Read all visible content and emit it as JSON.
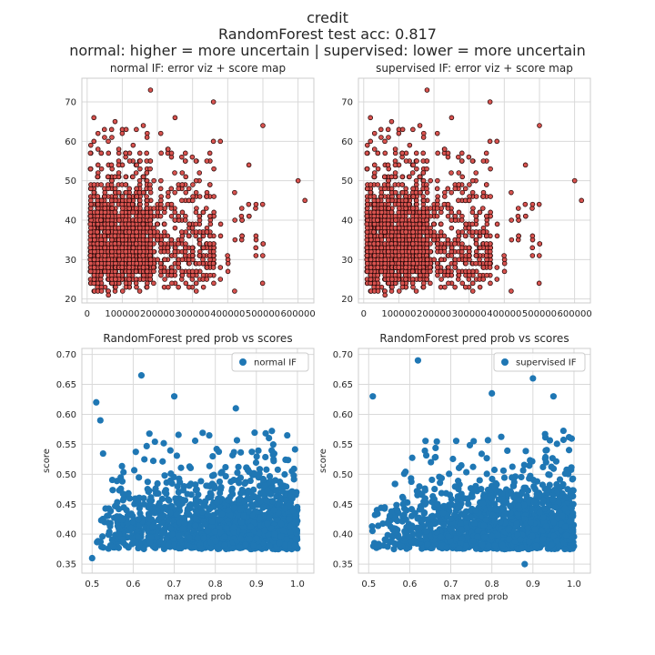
{
  "suptitle": {
    "line1": "credit",
    "line2": "RandomForest test acc: 0.817",
    "line3": "normal: higher = more uncertain | supervised: lower = more uncertain"
  },
  "colors": {
    "scatter_fill": "#d9534f",
    "scatter_edge": "#2b0a0a",
    "blue": "#1f77b4",
    "grid": "#d9d9d9",
    "frame": "#cccccc"
  },
  "chart_data": [
    {
      "type": "scatter",
      "title": "normal IF: error viz + score map",
      "xlabel": "",
      "ylabel": "",
      "xlim": [
        -15000,
        645000
      ],
      "ylim": [
        19,
        76
      ],
      "xticks": [
        0,
        100000,
        200000,
        300000,
        400000,
        500000,
        600000
      ],
      "xtick_labels": [
        "0",
        "100000",
        "200000",
        "300000",
        "400000",
        "500000",
        "600000"
      ],
      "yticks": [
        20,
        30,
        40,
        50,
        60,
        70
      ],
      "ytick_labels": [
        "20",
        "30",
        "40",
        "50",
        "60",
        "70"
      ],
      "grid": true,
      "marker": "circle, red fill, dark edge",
      "notable_points": [
        [
          180000,
          73
        ],
        [
          360000,
          70
        ],
        [
          600000,
          50
        ],
        [
          620000,
          45
        ],
        [
          500000,
          64
        ],
        [
          480000,
          36
        ],
        [
          60000,
          21
        ],
        [
          40000,
          22
        ]
      ]
    },
    {
      "type": "scatter",
      "title": "supervised IF: error viz + score map",
      "xlabel": "",
      "ylabel": "",
      "xlim": [
        -15000,
        645000
      ],
      "ylim": [
        19,
        76
      ],
      "xticks": [
        0,
        100000,
        200000,
        300000,
        400000,
        500000,
        600000
      ],
      "xtick_labels": [
        "0",
        "100000",
        "200000",
        "300000",
        "400000",
        "500000",
        "600000"
      ],
      "yticks": [
        20,
        30,
        40,
        50,
        60,
        70
      ],
      "ytick_labels": [
        "20",
        "30",
        "40",
        "50",
        "60",
        "70"
      ],
      "grid": true,
      "marker": "circle, red fill, dark edge",
      "notable_points": [
        [
          180000,
          73
        ],
        [
          360000,
          70
        ],
        [
          600000,
          50
        ],
        [
          620000,
          45
        ],
        [
          500000,
          64
        ],
        [
          480000,
          36
        ],
        [
          60000,
          21
        ],
        [
          40000,
          22
        ]
      ]
    },
    {
      "type": "scatter",
      "title": "RandomForest pred prob vs scores",
      "xlabel": "max pred prob",
      "ylabel": "score",
      "xlim": [
        0.475,
        1.04
      ],
      "ylim": [
        0.335,
        0.71
      ],
      "xticks": [
        0.5,
        0.6,
        0.7,
        0.8,
        0.9,
        1.0
      ],
      "xtick_labels": [
        "0.5",
        "0.6",
        "0.7",
        "0.8",
        "0.9",
        "1.0"
      ],
      "yticks": [
        0.35,
        0.4,
        0.45,
        0.5,
        0.55,
        0.6,
        0.65,
        0.7
      ],
      "ytick_labels": [
        "0.35",
        "0.40",
        "0.45",
        "0.50",
        "0.55",
        "0.60",
        "0.65",
        "0.70"
      ],
      "grid": true,
      "legend": {
        "label": "normal IF",
        "placement": "top-right"
      },
      "series": [
        {
          "name": "normal IF"
        }
      ],
      "notable_points": [
        [
          0.62,
          0.665
        ],
        [
          0.51,
          0.62
        ],
        [
          0.7,
          0.63
        ],
        [
          0.85,
          0.61
        ],
        [
          0.5,
          0.36
        ],
        [
          0.52,
          0.59
        ]
      ],
      "score_range": [
        0.36,
        0.665
      ],
      "prob_range": [
        0.5,
        1.0
      ]
    },
    {
      "type": "scatter",
      "title": "RandomForest pred prob vs scores",
      "xlabel": "max pred prob",
      "ylabel": "score",
      "xlim": [
        0.475,
        1.04
      ],
      "ylim": [
        0.335,
        0.71
      ],
      "xticks": [
        0.5,
        0.6,
        0.7,
        0.8,
        0.9,
        1.0
      ],
      "xtick_labels": [
        "0.5",
        "0.6",
        "0.7",
        "0.8",
        "0.9",
        "1.0"
      ],
      "yticks": [
        0.35,
        0.4,
        0.45,
        0.5,
        0.55,
        0.6,
        0.65,
        0.7
      ],
      "ytick_labels": [
        "0.35",
        "0.40",
        "0.45",
        "0.50",
        "0.55",
        "0.60",
        "0.65",
        "0.70"
      ],
      "grid": true,
      "legend": {
        "label": "supervised IF",
        "placement": "top-right"
      },
      "series": [
        {
          "name": "supervised IF"
        }
      ],
      "notable_points": [
        [
          0.62,
          0.69
        ],
        [
          0.9,
          0.66
        ],
        [
          0.51,
          0.63
        ],
        [
          0.8,
          0.635
        ],
        [
          0.95,
          0.63
        ],
        [
          0.88,
          0.35
        ]
      ],
      "score_range": [
        0.35,
        0.69
      ],
      "prob_range": [
        0.5,
        1.0
      ]
    }
  ]
}
